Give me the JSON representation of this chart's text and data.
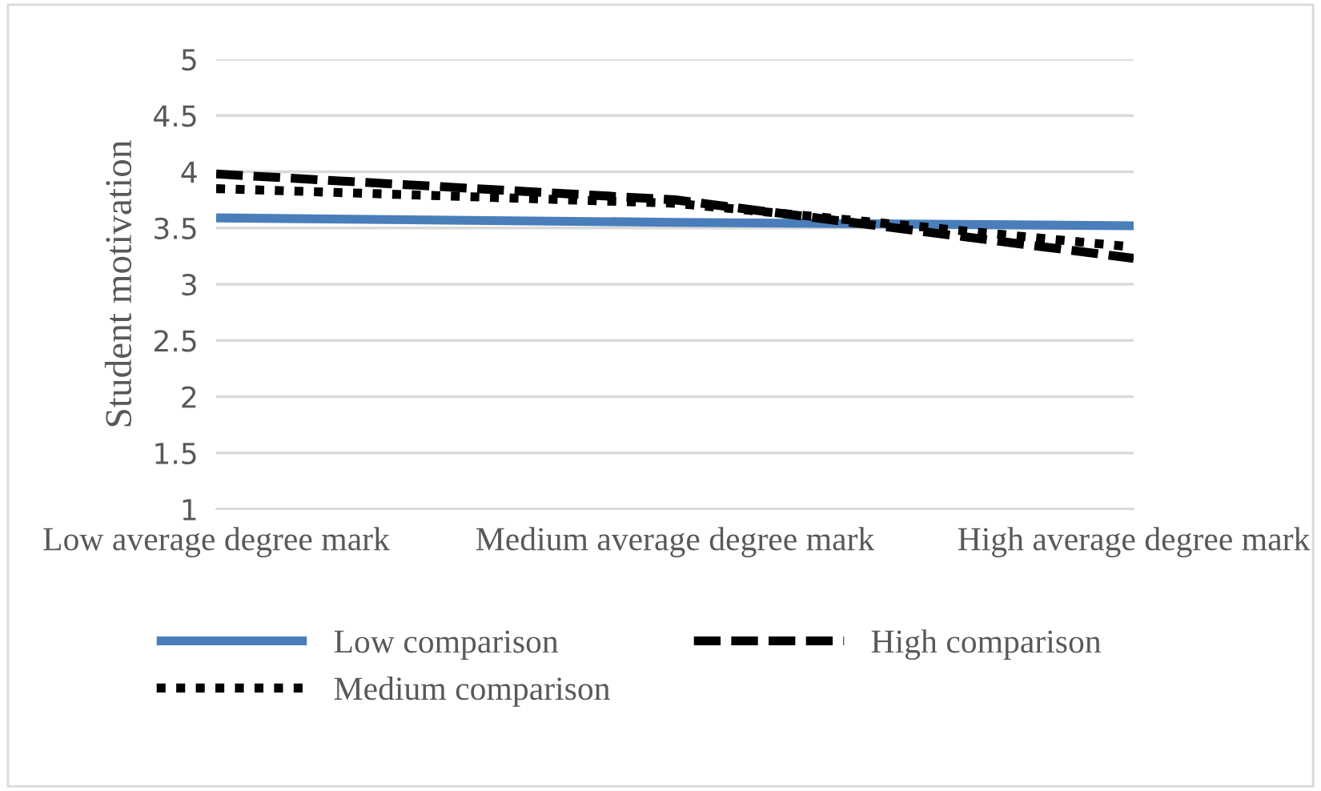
{
  "chart_data": {
    "type": "line",
    "ylabel": "Student motivation",
    "categories": [
      "Low average degree mark",
      "Medium average degree mark",
      "High average degree mark"
    ],
    "series": [
      {
        "name": "Low comparison",
        "color": "#4a7ebb",
        "line_style": "solid",
        "values": [
          3.59,
          3.55,
          3.52
        ]
      },
      {
        "name": "Medium comparison",
        "color": "#000000",
        "line_style": "dotted",
        "values": [
          3.85,
          3.72,
          3.33
        ]
      },
      {
        "name": "High comparison",
        "color": "#000000",
        "line_style": "dashed",
        "values": [
          3.98,
          3.75,
          3.23
        ]
      }
    ],
    "ylim": [
      1,
      5
    ],
    "yticks": [
      1,
      1.5,
      2,
      2.5,
      3,
      3.5,
      4,
      4.5,
      5
    ],
    "grid": "y",
    "legend": "bottom",
    "marker": "none"
  }
}
